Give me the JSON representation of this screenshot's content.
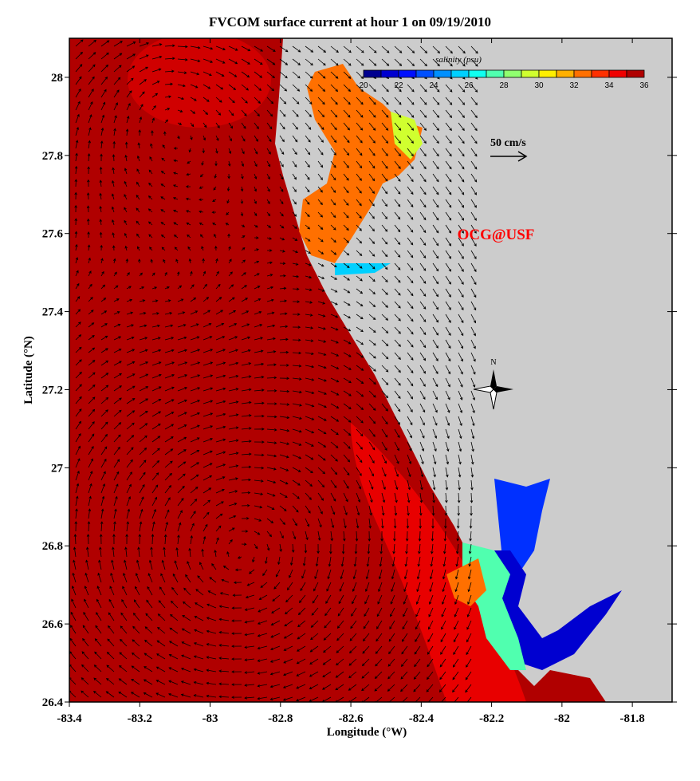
{
  "title": "FVCOM surface current at hour 1 on 09/19/2010",
  "map": {
    "xlabel": "Longitude (°W)",
    "ylabel": "Latitude (°N)",
    "lon_range": [
      -83.4,
      -81.687
    ],
    "lat_range": [
      26.4,
      28.1
    ],
    "lon_ticks": [
      "-83.4",
      "-83.2",
      "-83",
      "-82.8",
      "-82.6",
      "-82.4",
      "-82.2",
      "-82",
      "-81.8"
    ],
    "lat_ticks": [
      "26.4",
      "26.6",
      "26.8",
      "27",
      "27.2",
      "27.4",
      "27.6",
      "27.8",
      "28"
    ],
    "ocean_color": "#b00000",
    "land_color": "#cccccc",
    "watermark": "OCG@USF",
    "watermark_color": "#ff0000",
    "north_label": "N",
    "scale_arrow_label": "50 cm/s"
  },
  "colorbar": {
    "title": "salinity (psu)",
    "labels": [
      "20",
      "22",
      "24",
      "26",
      "28",
      "30",
      "32",
      "34",
      "36"
    ],
    "colors": [
      "#00008f",
      "#0000d0",
      "#0010ff",
      "#0050ff",
      "#0090ff",
      "#00d0ff",
      "#10ffef",
      "#50ffaf",
      "#90ff6f",
      "#d0ff2f",
      "#ffef00",
      "#ffb000",
      "#ff7000",
      "#ff3000",
      "#f00000",
      "#b00000"
    ]
  }
}
